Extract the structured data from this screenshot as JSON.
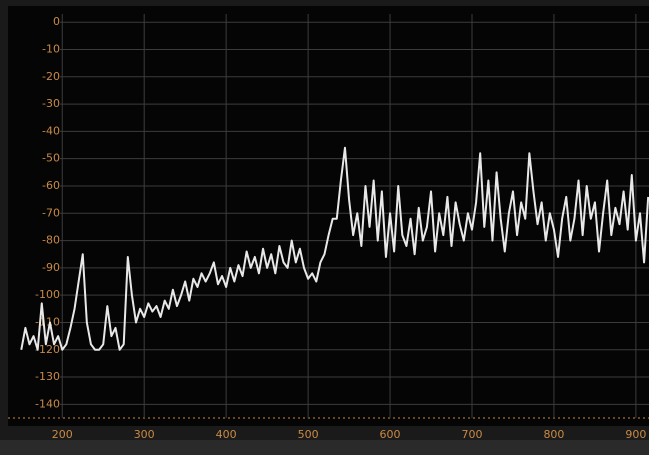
{
  "chart_data": {
    "type": "line",
    "x": [
      150,
      155,
      160,
      165,
      170,
      175,
      180,
      185,
      190,
      195,
      200,
      205,
      210,
      215,
      220,
      225,
      230,
      235,
      240,
      245,
      250,
      255,
      260,
      265,
      270,
      275,
      280,
      285,
      290,
      295,
      300,
      305,
      310,
      315,
      320,
      325,
      330,
      335,
      340,
      345,
      350,
      355,
      360,
      365,
      370,
      375,
      380,
      385,
      390,
      395,
      400,
      405,
      410,
      415,
      420,
      425,
      430,
      435,
      440,
      445,
      450,
      455,
      460,
      465,
      470,
      475,
      480,
      485,
      490,
      495,
      500,
      505,
      510,
      515,
      520,
      525,
      530,
      535,
      540,
      545,
      550,
      555,
      560,
      565,
      570,
      575,
      580,
      585,
      590,
      595,
      600,
      605,
      610,
      615,
      620,
      625,
      630,
      635,
      640,
      645,
      650,
      655,
      660,
      665,
      670,
      675,
      680,
      685,
      690,
      695,
      700,
      705,
      710,
      715,
      720,
      725,
      730,
      735,
      740,
      745,
      750,
      755,
      760,
      765,
      770,
      775,
      780,
      785,
      790,
      795,
      800,
      805,
      810,
      815,
      820,
      825,
      830,
      835,
      840,
      845,
      850,
      855,
      860,
      865,
      870,
      875,
      880,
      885,
      890,
      895,
      900,
      905,
      910,
      915
    ],
    "series": [
      {
        "color": "#e8e8e8",
        "values": [
          -120,
          -112,
          -118,
          -115,
          -120,
          -103,
          -118,
          -110,
          -118,
          -115,
          -120,
          -118,
          -112,
          -105,
          -95,
          -85,
          -110,
          -118,
          -120,
          -120,
          -118,
          -104,
          -115,
          -112,
          -120,
          -118,
          -86,
          -100,
          -110,
          -105,
          -108,
          -103,
          -106,
          -104,
          -108,
          -102,
          -105,
          -98,
          -104,
          -100,
          -95,
          -102,
          -94,
          -97,
          -92,
          -95,
          -92,
          -88,
          -96,
          -93,
          -97,
          -90,
          -95,
          -89,
          -93,
          -84,
          -90,
          -86,
          -92,
          -83,
          -90,
          -85,
          -92,
          -82,
          -88,
          -90,
          -80,
          -88,
          -83,
          -90,
          -94,
          -92,
          -95,
          -88,
          -85,
          -78,
          -72,
          -72,
          -58,
          -46,
          -65,
          -78,
          -70,
          -82,
          -60,
          -75,
          -58,
          -80,
          -62,
          -86,
          -70,
          -84,
          -60,
          -78,
          -82,
          -72,
          -85,
          -68,
          -80,
          -75,
          -62,
          -84,
          -70,
          -78,
          -64,
          -82,
          -66,
          -74,
          -80,
          -70,
          -76,
          -66,
          -48,
          -75,
          -58,
          -80,
          -55,
          -72,
          -84,
          -70,
          -62,
          -78,
          -66,
          -72,
          -48,
          -62,
          -74,
          -66,
          -80,
          -70,
          -76,
          -86,
          -72,
          -64,
          -80,
          -72,
          -58,
          -78,
          -60,
          -72,
          -66,
          -84,
          -70,
          -58,
          -78,
          -68,
          -74,
          -62,
          -76,
          -56,
          -80,
          -70,
          -88,
          -64
        ]
      }
    ],
    "xlim": [
      146,
      916
    ],
    "ylim": [
      -145,
      3
    ],
    "xticks": [
      200,
      300,
      400,
      500,
      600,
      700,
      800,
      900
    ],
    "yticks": [
      0,
      -10,
      -20,
      -30,
      -40,
      -50,
      -60,
      -70,
      -80,
      -90,
      -100,
      -110,
      -120,
      -130,
      -140
    ],
    "grid": true,
    "tick_color": "#c98a45",
    "grid_color": "#3c3c3c",
    "background": "#050505"
  }
}
